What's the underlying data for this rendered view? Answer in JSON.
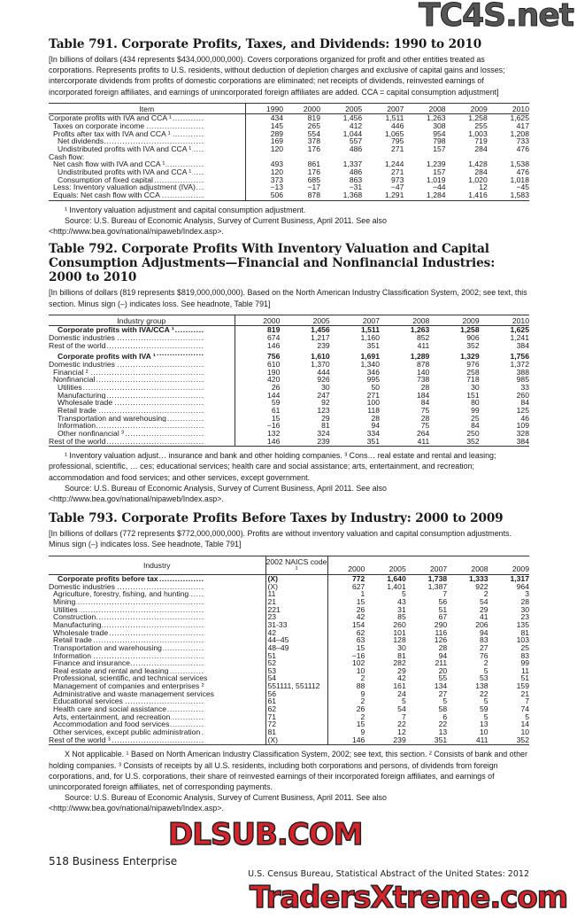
{
  "watermarks": {
    "top": "TC4S.net",
    "middle": "DLSUB.COM",
    "bottom": "TradersXtreme.com"
  },
  "t791": {
    "title": "Table 791. Corporate Profits, Taxes, and Dividends: 1990 to 2010",
    "headnote": "[In billions of dollars (434 represents $434,000,000,000). Covers corporations organized for profit and other entities treated as corporations. Represents profits to U.S. residents, without deduction of depletion charges and exclusive of capital gains and losses; intercorporate dividends from profits of domestic corporations are eliminated; net receipts of dividends, reinvested earnings of incorporated foreign affiliates, and earnings of unincorporated foreign affiliates are added. CCA = capital consumption adjustment]",
    "columns": [
      "Item",
      "1990",
      "2000",
      "2005",
      "2007",
      "2008",
      "2009",
      "2010"
    ],
    "rows": [
      {
        "label": "Corporate profits with IVA and CCA ¹",
        "indent": 0,
        "values": [
          "434",
          "819",
          "1,456",
          "1,511",
          "1,263",
          "1,258",
          "1,625"
        ]
      },
      {
        "label": "Taxes on corporate income",
        "indent": 1,
        "values": [
          "145",
          "265",
          "412",
          "446",
          "308",
          "255",
          "417"
        ]
      },
      {
        "label": "Profits after tax with IVA and CCA ¹",
        "indent": 1,
        "values": [
          "289",
          "554",
          "1,044",
          "1,065",
          "954",
          "1,003",
          "1,208"
        ]
      },
      {
        "label": "Net dividends",
        "indent": 2,
        "values": [
          "169",
          "378",
          "557",
          "795",
          "798",
          "719",
          "733"
        ]
      },
      {
        "label": "Undistributed profits with IVA and CCA ¹",
        "indent": 2,
        "values": [
          "120",
          "176",
          "486",
          "271",
          "157",
          "284",
          "476"
        ]
      },
      {
        "label": "Cash flow:",
        "indent": 0,
        "nodots": true,
        "values": [
          "",
          "",
          "",
          "",
          "",
          "",
          ""
        ]
      },
      {
        "label": "Net cash flow with IVA and CCA ¹",
        "indent": 1,
        "values": [
          "493",
          "861",
          "1,337",
          "1,244",
          "1,239",
          "1,428",
          "1,538"
        ]
      },
      {
        "label": "Undistributed profits with IVA and CCA ¹",
        "indent": 2,
        "values": [
          "120",
          "176",
          "486",
          "271",
          "157",
          "284",
          "476"
        ]
      },
      {
        "label": "Consumption of fixed capital",
        "indent": 2,
        "values": [
          "373",
          "685",
          "863",
          "973",
          "1,019",
          "1,020",
          "1,018"
        ]
      },
      {
        "label": "Less: Inventory valuation adjustment (IVA)",
        "indent": 1,
        "values": [
          "−13",
          "−17",
          "−31",
          "−47",
          "−44",
          "12",
          "−45"
        ]
      },
      {
        "label": "Equals: Net cash flow with CCA",
        "indent": 1,
        "values": [
          "506",
          "878",
          "1,368",
          "1,291",
          "1,284",
          "1,416",
          "1,583"
        ]
      }
    ],
    "footnotes": [
      "¹ Inventory valuation adjustment and capital consumption adjustment.",
      "Source: U.S. Bureau of Economic Analysis, Survey of Current Business, April 2011. See also <http://www.bea.gov/national/nipaweb/Index.asp>."
    ]
  },
  "t792": {
    "title": "Table 792. Corporate Profits With Inventory Valuation and Capital Consumption Adjustments—Financial and Nonfinancial Industries: 2000 to 2010",
    "headnote": "[In billions of dollars (819 represents $819,000,000,000). Based on the North American Industry Classification System, 2002; see text, this section. Minus sign (–) indicates loss. See headnote, Table 791]",
    "columns": [
      "Industry group",
      "2000",
      "2005",
      "2007",
      "2008",
      "2009",
      "2010"
    ],
    "rows": [
      {
        "label": "Corporate profits with IVA/CCA ¹",
        "indent": 2,
        "bold": true,
        "values": [
          "819",
          "1,456",
          "1,511",
          "1,263",
          "1,258",
          "1,625"
        ]
      },
      {
        "label": "Domestic industries",
        "indent": 0,
        "values": [
          "674",
          "1,217",
          "1,160",
          "852",
          "906",
          "1,241"
        ]
      },
      {
        "label": "Rest of the world",
        "indent": 0,
        "values": [
          "146",
          "239",
          "351",
          "411",
          "352",
          "384"
        ]
      },
      {
        "label": "Corporate profits with IVA ¹",
        "indent": 2,
        "bold": true,
        "gap": true,
        "values": [
          "756",
          "1,610",
          "1,691",
          "1,289",
          "1,329",
          "1,756"
        ]
      },
      {
        "label": "Domestic industries",
        "indent": 0,
        "values": [
          "610",
          "1,370",
          "1,340",
          "878",
          "976",
          "1,372"
        ]
      },
      {
        "label": "Financial ²",
        "indent": 1,
        "values": [
          "190",
          "444",
          "346",
          "140",
          "258",
          "388"
        ]
      },
      {
        "label": "Nonfinancial",
        "indent": 1,
        "values": [
          "420",
          "926",
          "995",
          "738",
          "718",
          "985"
        ]
      },
      {
        "label": "Utilities",
        "indent": 2,
        "values": [
          "26",
          "30",
          "50",
          "28",
          "30",
          "33"
        ]
      },
      {
        "label": "Manufacturing",
        "indent": 2,
        "values": [
          "144",
          "247",
          "271",
          "184",
          "151",
          "260"
        ]
      },
      {
        "label": "Wholesale trade",
        "indent": 2,
        "values": [
          "59",
          "92",
          "100",
          "84",
          "80",
          "84"
        ]
      },
      {
        "label": "Retail trade",
        "indent": 2,
        "values": [
          "61",
          "123",
          "118",
          "75",
          "99",
          "125"
        ]
      },
      {
        "label": "Transportation and warehousing",
        "indent": 2,
        "values": [
          "15",
          "29",
          "28",
          "28",
          "25",
          "46"
        ]
      },
      {
        "label": "Information",
        "indent": 2,
        "values": [
          "−16",
          "81",
          "94",
          "75",
          "84",
          "109"
        ]
      },
      {
        "label": "Other nonfinancial ³",
        "indent": 2,
        "values": [
          "132",
          "324",
          "334",
          "264",
          "250",
          "328"
        ]
      },
      {
        "label": "Rest of the world",
        "indent": 0,
        "values": [
          "146",
          "239",
          "351",
          "411",
          "352",
          "384"
        ]
      }
    ],
    "footnotes": [
      "¹ Inventory valuation adjust… insurance and bank and other holding companies. ³ Cons… real estate and rental and leasing; professional, scientific, … ces; educational services; health care and social assistance; arts, entertainment, and recreation; accommodation and food services; and other services, except government.",
      "Source: U.S. Bureau of Economic Analysis, Survey of Current Business, April 2011. See also <http://www.bea.gov/national/nipaweb/Index.asp>."
    ]
  },
  "t793": {
    "title": "Table 793. Corporate Profits Before Taxes by Industry: 2000 to 2009",
    "headnote": "[In billions of dollars (772 represents $772,000,000,000). Profits are without inventory valuation and capital consumption adjustments. Minus sign (–) indicates loss. See headnote, Table 791]",
    "columns": [
      "Industry",
      "2002 NAICS code ¹",
      "2000",
      "2005",
      "2007",
      "2008",
      "2009"
    ],
    "rows": [
      {
        "label": "Corporate profits before tax",
        "indent": 2,
        "bold": true,
        "code": "(X)",
        "values": [
          "772",
          "1,640",
          "1,738",
          "1,333",
          "1,317"
        ]
      },
      {
        "label": "Domestic industries",
        "indent": 0,
        "code": "(X)",
        "values": [
          "627",
          "1,401",
          "1,387",
          "922",
          "964"
        ]
      },
      {
        "label": "Agriculture, forestry, fishing, and hunting",
        "indent": 1,
        "code": "11",
        "values": [
          "1",
          "5",
          "7",
          "2",
          "3"
        ]
      },
      {
        "label": "Mining",
        "indent": 1,
        "code": "21",
        "values": [
          "15",
          "43",
          "56",
          "54",
          "28"
        ]
      },
      {
        "label": "Utilities",
        "indent": 1,
        "code": "221",
        "values": [
          "26",
          "31",
          "51",
          "29",
          "30"
        ]
      },
      {
        "label": "Construction",
        "indent": 1,
        "code": "23",
        "values": [
          "42",
          "85",
          "67",
          "41",
          "23"
        ]
      },
      {
        "label": "Manufacturing",
        "indent": 1,
        "code": "31-33",
        "values": [
          "154",
          "260",
          "290",
          "206",
          "135"
        ]
      },
      {
        "label": "Wholesale trade",
        "indent": 1,
        "code": "42",
        "values": [
          "62",
          "101",
          "116",
          "94",
          "81"
        ]
      },
      {
        "label": "Retail trade",
        "indent": 1,
        "code": "44–45",
        "values": [
          "63",
          "128",
          "126",
          "83",
          "103"
        ]
      },
      {
        "label": "Transportation and warehousing",
        "indent": 1,
        "code": "48–49",
        "values": [
          "15",
          "30",
          "28",
          "27",
          "25"
        ]
      },
      {
        "label": "Information",
        "indent": 1,
        "code": "51",
        "values": [
          "−16",
          "81",
          "94",
          "76",
          "83"
        ]
      },
      {
        "label": "Finance and insurance",
        "indent": 1,
        "code": "52",
        "values": [
          "102",
          "282",
          "211",
          "2",
          "99"
        ]
      },
      {
        "label": "Real estate and rental and leasing",
        "indent": 1,
        "code": "53",
        "values": [
          "10",
          "29",
          "20",
          "5",
          "11"
        ]
      },
      {
        "label": "Professional, scientific, and technical services",
        "indent": 1,
        "code": "54",
        "values": [
          "2",
          "42",
          "55",
          "53",
          "51"
        ]
      },
      {
        "label": "Management of companies and enterprises ²",
        "indent": 1,
        "code": "551111, 551112",
        "values": [
          "88",
          "161",
          "134",
          "138",
          "159"
        ]
      },
      {
        "label": "Administrative and waste management services",
        "indent": 1,
        "code": "56",
        "values": [
          "9",
          "24",
          "27",
          "22",
          "21"
        ]
      },
      {
        "label": "Educational services",
        "indent": 1,
        "code": "61",
        "values": [
          "2",
          "5",
          "5",
          "5",
          "7"
        ]
      },
      {
        "label": "Health care and social assistance",
        "indent": 1,
        "code": "62",
        "values": [
          "26",
          "54",
          "58",
          "59",
          "74"
        ]
      },
      {
        "label": "Arts, entertainment, and recreation",
        "indent": 1,
        "code": "71",
        "values": [
          "2",
          "7",
          "6",
          "5",
          "5"
        ]
      },
      {
        "label": "Accommodation and food services",
        "indent": 1,
        "code": "72",
        "values": [
          "15",
          "22",
          "22",
          "13",
          "14"
        ]
      },
      {
        "label": "Other services, except public administration",
        "indent": 1,
        "code": "81",
        "values": [
          "9",
          "12",
          "13",
          "10",
          "10"
        ]
      },
      {
        "label": "Rest of the world ³",
        "indent": 0,
        "code": "(X)",
        "values": [
          "146",
          "239",
          "351",
          "411",
          "352"
        ]
      }
    ],
    "footnotes": [
      "X Not applicable. ¹ Based on North American Industry Classification System, 2002; see text, this section. ² Consists of bank and other holding companies. ³ Consists of receipts by all U.S. residents, including both corporations and persons, of dividends from foreign corporations, and, for U.S. corporations, their share of reinvested earnings of their incorporated foreign affiliates, and earnings of unincorporated foreign affiliates, net of corresponding payments.",
      "Source: U.S. Bureau of Economic Analysis, Survey of Current Business, April 2011. See also <http://www.bea.gov/national/nipaweb/Index.asp>."
    ]
  },
  "footer": {
    "page": "518  Business Enterprise",
    "source": "U.S. Census Bureau, Statistical Abstract of the United States: 2012"
  }
}
